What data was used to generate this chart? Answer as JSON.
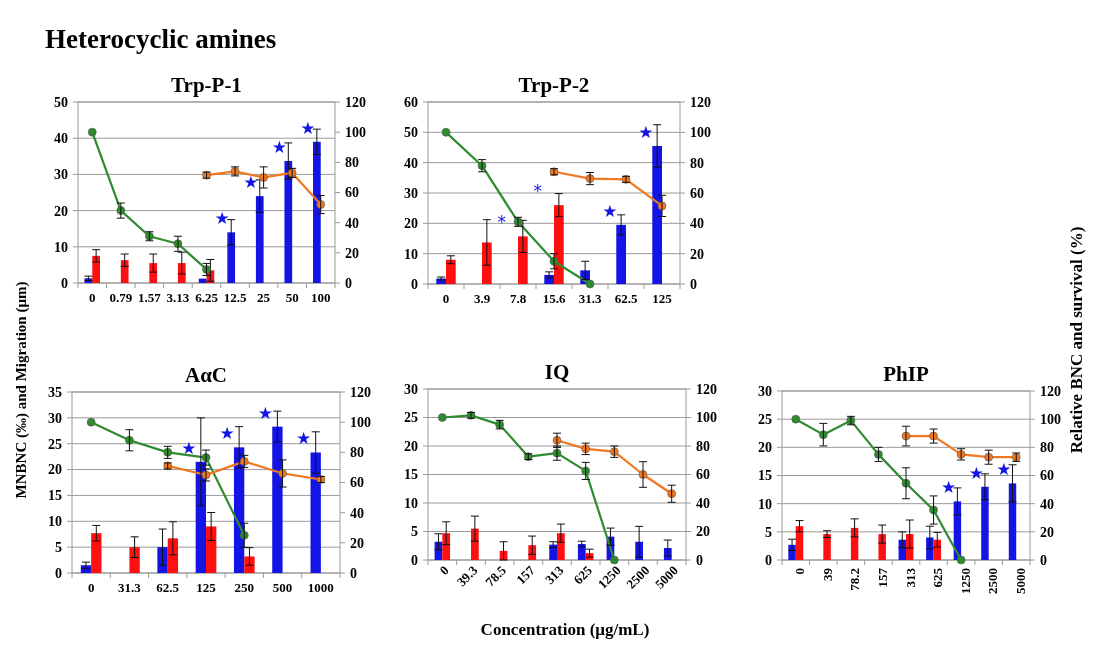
{
  "chart_data": [
    {
      "type": "other",
      "title": "Heterocyclic amines"
    },
    {
      "type": "bar",
      "title": "Trp-P-1",
      "categories": [
        "0",
        "0.79",
        "1.57",
        "3.13",
        "6.25",
        "12.5",
        "25",
        "50",
        "100"
      ],
      "ylim": [
        0,
        50
      ],
      "yticks": [
        0,
        10,
        20,
        30,
        40,
        50
      ],
      "y2lim": [
        0,
        120
      ],
      "y2ticks": [
        0,
        20,
        40,
        60,
        80,
        100,
        120
      ],
      "grid": "y",
      "marker": "circle",
      "series": [
        {
          "type": "bar",
          "color": "#1414e6",
          "values": [
            1.3,
            null,
            null,
            null,
            1.2,
            14,
            24,
            33.7,
            39
          ],
          "errors": [
            0.6,
            null,
            null,
            null,
            null,
            3.5,
            4.5,
            5,
            3.5
          ]
        },
        {
          "type": "bar",
          "color": "#ff1010",
          "values": [
            7.5,
            6.3,
            5.5,
            5.5,
            3.5,
            null,
            null,
            null,
            null
          ],
          "errors": [
            1.7,
            1.7,
            2.5,
            3,
            3,
            null,
            null,
            null,
            null
          ]
        },
        {
          "type": "line",
          "axis": "y2",
          "color": "#2e8b2e",
          "values": [
            100,
            48,
            31,
            26,
            9,
            null,
            null,
            null,
            null
          ],
          "errors": [
            null,
            5,
            3,
            5,
            4,
            null,
            null,
            null,
            null
          ]
        },
        {
          "type": "line",
          "axis": "y2",
          "color": "#f07820",
          "values": [
            null,
            null,
            null,
            null,
            71.5,
            74,
            70,
            73,
            52
          ],
          "errors": [
            null,
            null,
            null,
            null,
            2,
            3,
            7,
            3,
            6
          ]
        }
      ],
      "annotations": [
        {
          "text": "★",
          "x": "12.5",
          "y": 14
        },
        {
          "text": "★",
          "x": "25",
          "y": 24
        },
        {
          "text": "★",
          "x": "50",
          "y": 33.7
        },
        {
          "text": "★",
          "x": "100",
          "y": 39
        }
      ]
    },
    {
      "type": "bar",
      "title": "Trp-P-2",
      "categories": [
        "0",
        "3.9",
        "7.8",
        "15.6",
        "31.3",
        "62.5",
        "125"
      ],
      "ylim": [
        0,
        60
      ],
      "yticks": [
        0,
        10,
        20,
        30,
        40,
        50,
        60
      ],
      "y2lim": [
        0,
        120
      ],
      "y2ticks": [
        0,
        20,
        40,
        60,
        80,
        100,
        120
      ],
      "grid": "y",
      "marker": "circle",
      "series": [
        {
          "type": "bar",
          "color": "#1414e6",
          "values": [
            1.8,
            null,
            null,
            3,
            4.5,
            19.5,
            45.5
          ],
          "errors": [
            0.5,
            null,
            null,
            1,
            3,
            3.3,
            7
          ]
        },
        {
          "type": "bar",
          "color": "#ff1010",
          "values": [
            8,
            13.7,
            15.7,
            26,
            null,
            null,
            null
          ],
          "errors": [
            1.3,
            7.5,
            5.3,
            3.8,
            null,
            null,
            null
          ]
        },
        {
          "type": "line",
          "axis": "y2",
          "color": "#2e8b2e",
          "values": [
            100,
            78,
            41,
            15,
            0,
            null,
            null
          ],
          "errors": [
            null,
            4,
            3,
            5,
            null,
            null,
            null
          ]
        },
        {
          "type": "line",
          "axis": "y2",
          "color": "#f07820",
          "values": [
            null,
            null,
            null,
            74,
            69.5,
            69,
            51.5
          ],
          "errors": [
            null,
            null,
            null,
            2,
            4,
            2,
            7
          ]
        }
      ],
      "annotations": [
        {
          "text": "★",
          "x": "62.5",
          "y": 19.5
        },
        {
          "text": "★",
          "x": "125",
          "y": 45.5
        },
        {
          "text": "*",
          "x": "7.8",
          "y": 15.7
        },
        {
          "text": "*",
          "x": "15.6",
          "y": 26
        }
      ]
    },
    {
      "type": "bar",
      "title": "AαC",
      "ylabel": "MNBNC (‰) and Migration (μm)",
      "categories": [
        "0",
        "31.3",
        "62.5",
        "125",
        "250",
        "500",
        "1000"
      ],
      "ylim": [
        0,
        35
      ],
      "yticks": [
        0,
        5,
        10,
        15,
        20,
        25,
        30,
        35
      ],
      "y2lim": [
        0,
        120
      ],
      "y2ticks": [
        0,
        20,
        40,
        60,
        80,
        100,
        120
      ],
      "grid": "y",
      "marker": "circle",
      "series": [
        {
          "type": "bar",
          "color": "#1414e6",
          "values": [
            1.5,
            null,
            5,
            21.5,
            24.3,
            28.3,
            23.3
          ],
          "errors": [
            0.6,
            null,
            3.5,
            8.5,
            4,
            3,
            4
          ]
        },
        {
          "type": "bar",
          "color": "#ff1010",
          "values": [
            7.7,
            5,
            6.7,
            9,
            3.2,
            null,
            null
          ],
          "errors": [
            1.5,
            2,
            3.2,
            2.7,
            1.7,
            null,
            null
          ]
        },
        {
          "type": "line",
          "axis": "y2",
          "color": "#2e8b2e",
          "values": [
            100,
            88,
            80,
            76.5,
            25,
            null,
            null
          ],
          "errors": [
            null,
            7,
            4,
            5,
            8,
            null,
            null
          ]
        },
        {
          "type": "line",
          "axis": "y2",
          "color": "#f07820",
          "values": [
            null,
            null,
            71,
            65,
            74,
            66,
            62
          ],
          "errors": [
            null,
            null,
            2,
            4,
            4,
            9,
            2
          ]
        }
      ],
      "annotations": [
        {
          "text": "★",
          "x": "125",
          "y": 21.5
        },
        {
          "text": "★",
          "x": "250",
          "y": 24.3
        },
        {
          "text": "★",
          "x": "500",
          "y": 28.3
        },
        {
          "text": "★",
          "x": "1000",
          "y": 23.3
        }
      ]
    },
    {
      "type": "bar",
      "title": "IQ",
      "xlabel": "Concentration (μg/mL)",
      "categories": [
        "0",
        "39.3",
        "78.5",
        "157",
        "313",
        "625",
        "1250",
        "2500",
        "5000"
      ],
      "ylim": [
        0,
        30
      ],
      "yticks": [
        0,
        5,
        10,
        15,
        20,
        25,
        30
      ],
      "y2lim": [
        0,
        120
      ],
      "y2ticks": [
        0,
        20,
        40,
        60,
        80,
        100,
        120
      ],
      "grid": "y",
      "marker": "circle",
      "series": [
        {
          "type": "bar",
          "color": "#1414e6",
          "values": [
            3.2,
            null,
            null,
            null,
            2.7,
            2.8,
            4.1,
            3.2,
            2.1
          ],
          "errors": [
            1.4,
            null,
            null,
            null,
            0.5,
            0.5,
            1.5,
            2.7,
            1.4
          ]
        },
        {
          "type": "bar",
          "color": "#ff1010",
          "values": [
            4.7,
            5.5,
            1.6,
            2.6,
            4.7,
            1.2,
            null,
            null,
            null
          ],
          "errors": [
            2,
            2.2,
            1.6,
            1.6,
            1.6,
            0.7,
            null,
            null,
            null
          ]
        },
        {
          "type": "line",
          "axis": "y2",
          "color": "#2e8b2e",
          "values": [
            100,
            101.5,
            95,
            72.5,
            75,
            62.5,
            0,
            null,
            null
          ],
          "errors": [
            null,
            2,
            3,
            2,
            5,
            6,
            null,
            null,
            null
          ]
        },
        {
          "type": "line",
          "axis": "y2",
          "color": "#f07820",
          "values": [
            null,
            null,
            null,
            null,
            84,
            78,
            76,
            60,
            46.5
          ],
          "errors": [
            null,
            null,
            null,
            null,
            5,
            4,
            4,
            9,
            6
          ]
        }
      ]
    },
    {
      "type": "bar",
      "title": "PhIP",
      "y2label": "Relative BNC and survival (%)",
      "categories": [
        "0",
        "39",
        "78.2",
        "157",
        "313",
        "625",
        "1250",
        "2500",
        "5000"
      ],
      "ylim": [
        0,
        30
      ],
      "yticks": [
        0,
        5,
        10,
        15,
        20,
        25,
        30
      ],
      "y2lim": [
        0,
        120
      ],
      "y2ticks": [
        0,
        20,
        40,
        60,
        80,
        100,
        120
      ],
      "grid": "y",
      "marker": "circle",
      "series": [
        {
          "type": "bar",
          "color": "#1414e6",
          "values": [
            2.7,
            null,
            null,
            null,
            3.6,
            4,
            10.4,
            13,
            13.6
          ],
          "errors": [
            1,
            null,
            null,
            null,
            1.4,
            2,
            2.4,
            2.3,
            3.3
          ]
        },
        {
          "type": "bar",
          "color": "#ff1010",
          "values": [
            6,
            4.6,
            5.7,
            4.6,
            4.6,
            3.6,
            null,
            null,
            null
          ],
          "errors": [
            1,
            0.6,
            1.6,
            1.6,
            2.5,
            1.3,
            null,
            null,
            null
          ]
        },
        {
          "type": "line",
          "axis": "y2",
          "color": "#2e8b2e",
          "values": [
            100,
            89,
            99,
            75,
            54.5,
            35.5,
            0,
            null,
            null
          ],
          "errors": [
            null,
            8,
            3,
            5,
            11,
            10,
            null,
            null,
            null
          ]
        },
        {
          "type": "line",
          "axis": "y2",
          "color": "#f07820",
          "values": [
            null,
            null,
            null,
            null,
            88,
            88,
            75,
            73,
            73
          ],
          "errors": [
            null,
            null,
            null,
            null,
            7,
            5,
            4,
            5,
            3
          ]
        }
      ],
      "annotations": [
        {
          "text": "★",
          "x": "1250",
          "y": 10.4
        },
        {
          "text": "★",
          "x": "2500",
          "y": 13
        },
        {
          "text": "★",
          "x": "5000",
          "y": 13.6
        }
      ]
    }
  ]
}
